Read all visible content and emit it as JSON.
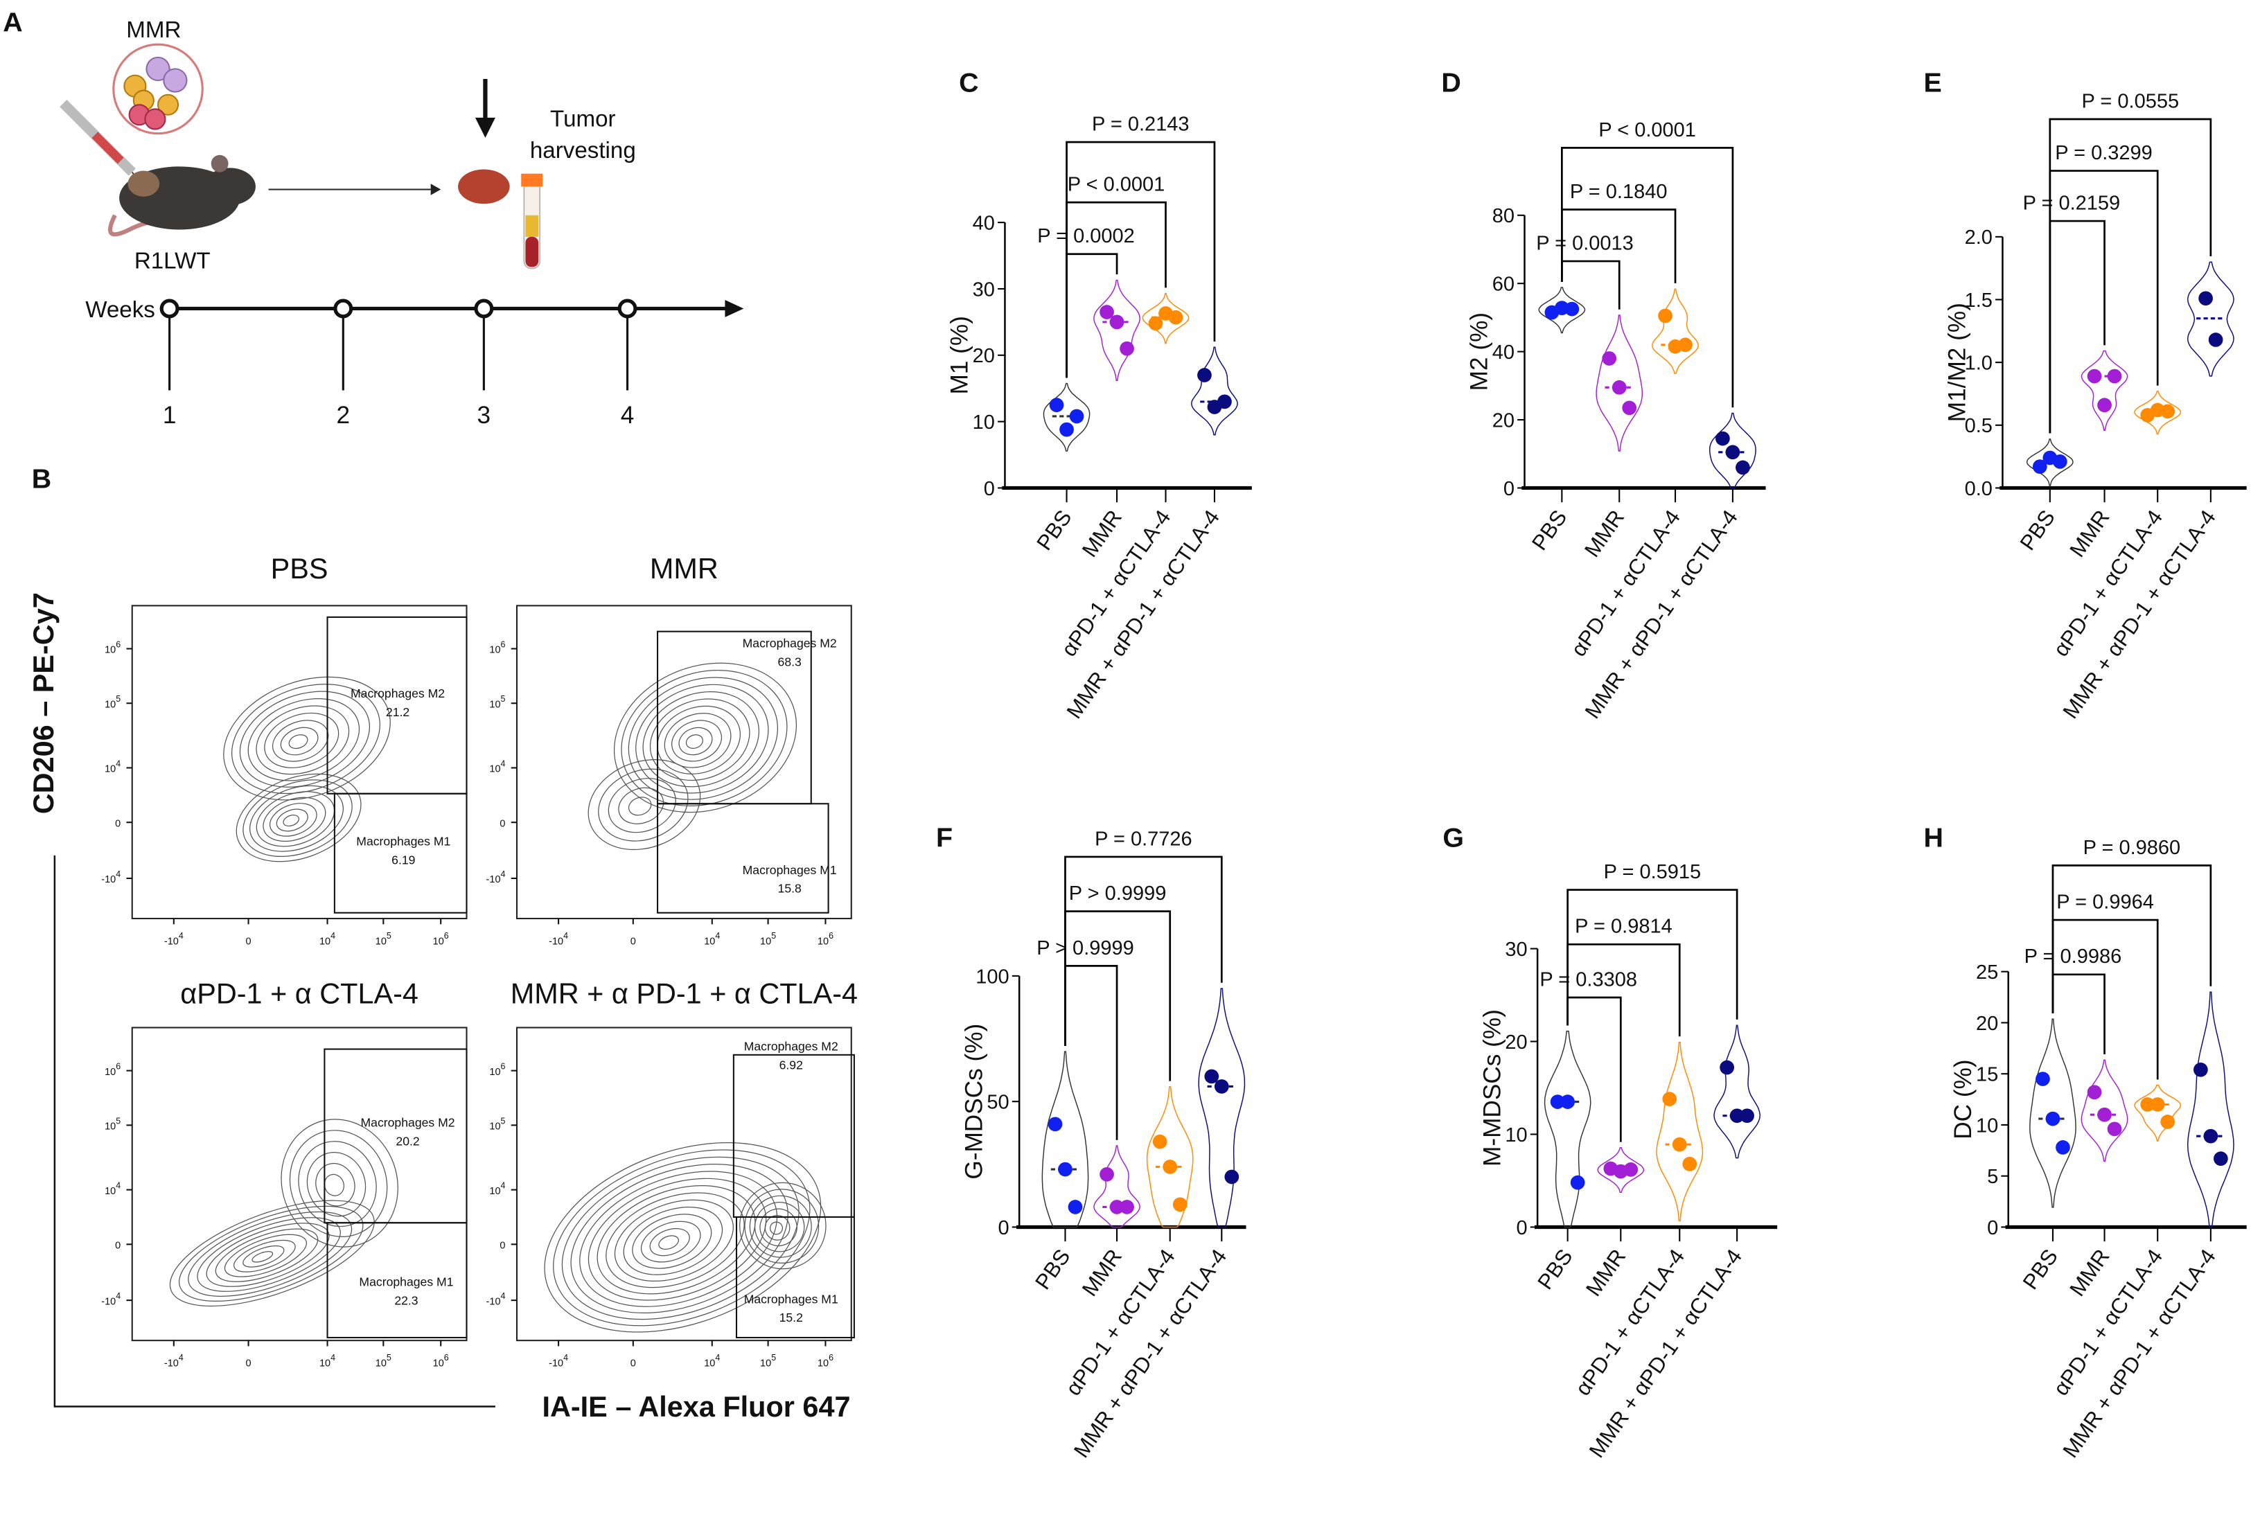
{
  "colors": {
    "PBS": "#1020f0",
    "MMR": "#a21fd6",
    "aPD1": "#ff8a00",
    "combo": "#0b0b80",
    "PBS_violin": "#333333"
  },
  "panelA": {
    "letter": "A",
    "virus_label": "MMR",
    "mouse_label": "R1LWT",
    "harvest_line1": "Tumor",
    "harvest_line2": "harvesting",
    "timeline_label": "Weeks",
    "weeks": [
      "1",
      "2",
      "3",
      "4"
    ]
  },
  "panelB": {
    "letter": "B",
    "y_axis_label": "CD206 – PE-Cy7",
    "x_axis_label": "IA-IE – Alexa Fluor 647",
    "x_ticks": [
      {
        "base": "-10",
        "exp": "4"
      },
      {
        "base": "0",
        "exp": ""
      },
      {
        "base": "10",
        "exp": "4"
      },
      {
        "base": "10",
        "exp": "5"
      },
      {
        "base": "10",
        "exp": "6"
      }
    ],
    "y_ticks": [
      {
        "base": "10",
        "exp": "6"
      },
      {
        "base": "10",
        "exp": "5"
      },
      {
        "base": "10",
        "exp": "4"
      },
      {
        "base": "0",
        "exp": ""
      },
      {
        "base": "-10",
        "exp": "4"
      }
    ],
    "plots": [
      {
        "title": "PBS",
        "m2_label": "Macrophages M2",
        "m2_value": "21.2",
        "m1_label": "Macrophages M1",
        "m1_value": "6.19"
      },
      {
        "title": "MMR",
        "m2_label": "Macrophages M2",
        "m2_value": "68.3",
        "m1_label": "Macrophages M1",
        "m1_value": "15.8"
      },
      {
        "title": "αPD-1 + α CTLA-4",
        "m2_label": "Macrophages M2",
        "m2_value": "20.2",
        "m1_label": "Macrophages M1",
        "m1_value": "22.3"
      },
      {
        "title": "MMR + α PD-1 + α CTLA-4",
        "m2_label": "Macrophages M2",
        "m2_value": "6.92",
        "m1_label": "Macrophages M1",
        "m1_value": "15.2"
      }
    ]
  },
  "chart_data": [
    {
      "panel": "C",
      "type": "violin",
      "ylabel": "M1 (%)",
      "ylim": [
        0,
        40
      ],
      "yticks": [
        "0",
        "10",
        "20",
        "30",
        "40"
      ],
      "categories": [
        "PBS",
        "MMR",
        "αPD-1 + αCTLA-4",
        "MMR + αPD-1 + αCTLA-4"
      ],
      "series": [
        {
          "name": "PBS",
          "values": [
            12.5,
            8.8,
            10.8
          ],
          "median": 10.8
        },
        {
          "name": "MMR",
          "values": [
            26.5,
            25.0,
            21.0
          ],
          "median": 25.0
        },
        {
          "name": "αPD-1 + αCTLA-4",
          "values": [
            24.8,
            26.3,
            25.7
          ],
          "median": 25.7
        },
        {
          "name": "MMR + αPD-1 + αCTLA-4",
          "values": [
            17.0,
            12.2,
            13.0
          ],
          "median": 13.0
        }
      ],
      "comparisons": [
        {
          "groups": [
            "PBS",
            "MMR"
          ],
          "label": "P = 0.0002"
        },
        {
          "groups": [
            "PBS",
            "αPD-1 + αCTLA-4"
          ],
          "label": "P < 0.0001"
        },
        {
          "groups": [
            "PBS",
            "MMR + αPD-1 + αCTLA-4"
          ],
          "label": "P = 0.2143"
        }
      ]
    },
    {
      "panel": "D",
      "type": "violin",
      "ylabel": "M2 (%)",
      "ylim": [
        0,
        80
      ],
      "yticks": [
        "0",
        "20",
        "40",
        "60",
        "80"
      ],
      "categories": [
        "PBS",
        "MMR",
        "αPD-1 + αCTLA-4",
        "MMR + αPD-1 + αCTLA-4"
      ],
      "series": [
        {
          "name": "PBS",
          "values": [
            51.5,
            52.8,
            52.5
          ],
          "median": 52.5
        },
        {
          "name": "MMR",
          "values": [
            38.0,
            29.5,
            23.5
          ],
          "median": 29.5
        },
        {
          "name": "αPD-1 + αCTLA-4",
          "values": [
            50.5,
            41.5,
            42.0
          ],
          "median": 42.0
        },
        {
          "name": "MMR + αPD-1 + αCTLA-4",
          "values": [
            14.5,
            10.5,
            6.0
          ],
          "median": 10.5
        }
      ],
      "comparisons": [
        {
          "groups": [
            "PBS",
            "MMR"
          ],
          "label": "P = 0.0013"
        },
        {
          "groups": [
            "PBS",
            "αPD-1 + αCTLA-4"
          ],
          "label": "P = 0.1840"
        },
        {
          "groups": [
            "PBS",
            "MMR + αPD-1 + αCTLA-4"
          ],
          "label": "P < 0.0001"
        }
      ]
    },
    {
      "panel": "E",
      "type": "violin",
      "ylabel": "M1/M2 (%)",
      "ylim": [
        0,
        2.0
      ],
      "yticks": [
        "0.0",
        "0.5",
        "1.0",
        "1.5",
        "2.0"
      ],
      "categories": [
        "PBS",
        "MMR",
        "αPD-1 + αCTLA-4",
        "MMR + αPD-1 + αCTLA-4"
      ],
      "series": [
        {
          "name": "PBS",
          "values": [
            0.17,
            0.24,
            0.21
          ],
          "median": 0.21
        },
        {
          "name": "MMR",
          "values": [
            0.89,
            0.66,
            0.89
          ],
          "median": 0.89
        },
        {
          "name": "αPD-1 + αCTLA-4",
          "values": [
            0.58,
            0.62,
            0.61
          ],
          "median": 0.61
        },
        {
          "name": "MMR + αPD-1 + αCTLA-4",
          "values": [
            1.51,
            1.18
          ],
          "median": 1.35
        }
      ],
      "comparisons": [
        {
          "groups": [
            "PBS",
            "MMR"
          ],
          "label": "P = 0.2159"
        },
        {
          "groups": [
            "PBS",
            "αPD-1 + αCTLA-4"
          ],
          "label": "P = 0.3299"
        },
        {
          "groups": [
            "PBS",
            "MMR + αPD-1 + αCTLA-4"
          ],
          "label": "P = 0.0555"
        }
      ]
    },
    {
      "panel": "F",
      "type": "violin",
      "ylabel": "G-MDSCs (%)",
      "ylim": [
        0,
        100
      ],
      "yticks": [
        "0",
        "50",
        "100"
      ],
      "categories": [
        "PBS",
        "MMR",
        "αPD-1 + αCTLA-4",
        "MMR + αPD-1 + αCTLA-4"
      ],
      "series": [
        {
          "name": "PBS",
          "values": [
            41,
            23,
            8
          ],
          "median": 23
        },
        {
          "name": "MMR",
          "values": [
            21,
            8,
            8
          ],
          "median": 8
        },
        {
          "name": "αPD-1 + αCTLA-4",
          "values": [
            34,
            24,
            9
          ],
          "median": 24
        },
        {
          "name": "MMR + αPD-1 + αCTLA-4",
          "values": [
            60,
            56,
            20
          ],
          "median": 56
        }
      ],
      "comparisons": [
        {
          "groups": [
            "PBS",
            "MMR"
          ],
          "label": "P > 0.9999"
        },
        {
          "groups": [
            "PBS",
            "αPD-1 + αCTLA-4"
          ],
          "label": "P > 0.9999"
        },
        {
          "groups": [
            "PBS",
            "MMR + αPD-1 + αCTLA-4"
          ],
          "label": "P = 0.7726"
        }
      ]
    },
    {
      "panel": "G",
      "type": "violin",
      "ylabel": "M-MDSCs (%)",
      "ylim": [
        0,
        30
      ],
      "yticks": [
        "0",
        "10",
        "20",
        "30"
      ],
      "categories": [
        "PBS",
        "MMR",
        "αPD-1 + αCTLA-4",
        "MMR + αPD-1 + αCTLA-4"
      ],
      "series": [
        {
          "name": "PBS",
          "values": [
            13.5,
            13.5,
            4.8
          ],
          "median": 13.5
        },
        {
          "name": "MMR",
          "values": [
            6.3,
            6.0,
            6.2
          ],
          "median": 6.2
        },
        {
          "name": "αPD-1 + αCTLA-4",
          "values": [
            13.8,
            8.9,
            6.8
          ],
          "median": 8.9
        },
        {
          "name": "MMR + αPD-1 + αCTLA-4",
          "values": [
            17.2,
            12.0,
            12.0
          ],
          "median": 12.0
        }
      ],
      "comparisons": [
        {
          "groups": [
            "PBS",
            "MMR"
          ],
          "label": "P = 0.3308"
        },
        {
          "groups": [
            "PBS",
            "αPD-1 + αCTLA-4"
          ],
          "label": "P = 0.9814"
        },
        {
          "groups": [
            "PBS",
            "MMR + αPD-1 + αCTLA-4"
          ],
          "label": "P = 0.5915"
        }
      ]
    },
    {
      "panel": "H",
      "type": "violin",
      "ylabel": "DC (%)",
      "ylim": [
        0,
        25
      ],
      "yticks": [
        "0",
        "5",
        "10",
        "15",
        "20",
        "25"
      ],
      "categories": [
        "PBS",
        "MMR",
        "αPD-1 + αCTLA-4",
        "MMR + αPD-1 + αCTLA-4"
      ],
      "series": [
        {
          "name": "PBS",
          "values": [
            14.5,
            10.6,
            7.8
          ],
          "median": 10.6
        },
        {
          "name": "MMR",
          "values": [
            13.2,
            11.0,
            9.6
          ],
          "median": 11.0
        },
        {
          "name": "αPD-1 + αCTLA-4",
          "values": [
            12.0,
            12.0,
            10.3
          ],
          "median": 12.0
        },
        {
          "name": "MMR + αPD-1 + αCTLA-4",
          "values": [
            15.4,
            8.9,
            6.7
          ],
          "median": 8.9
        }
      ],
      "comparisons": [
        {
          "groups": [
            "PBS",
            "MMR"
          ],
          "label": "P = 0.9986"
        },
        {
          "groups": [
            "PBS",
            "αPD-1 + αCTLA-4"
          ],
          "label": "P = 0.9964"
        },
        {
          "groups": [
            "PBS",
            "MMR + αPD-1 + αCTLA-4"
          ],
          "label": "P = 0.9860"
        }
      ]
    }
  ]
}
